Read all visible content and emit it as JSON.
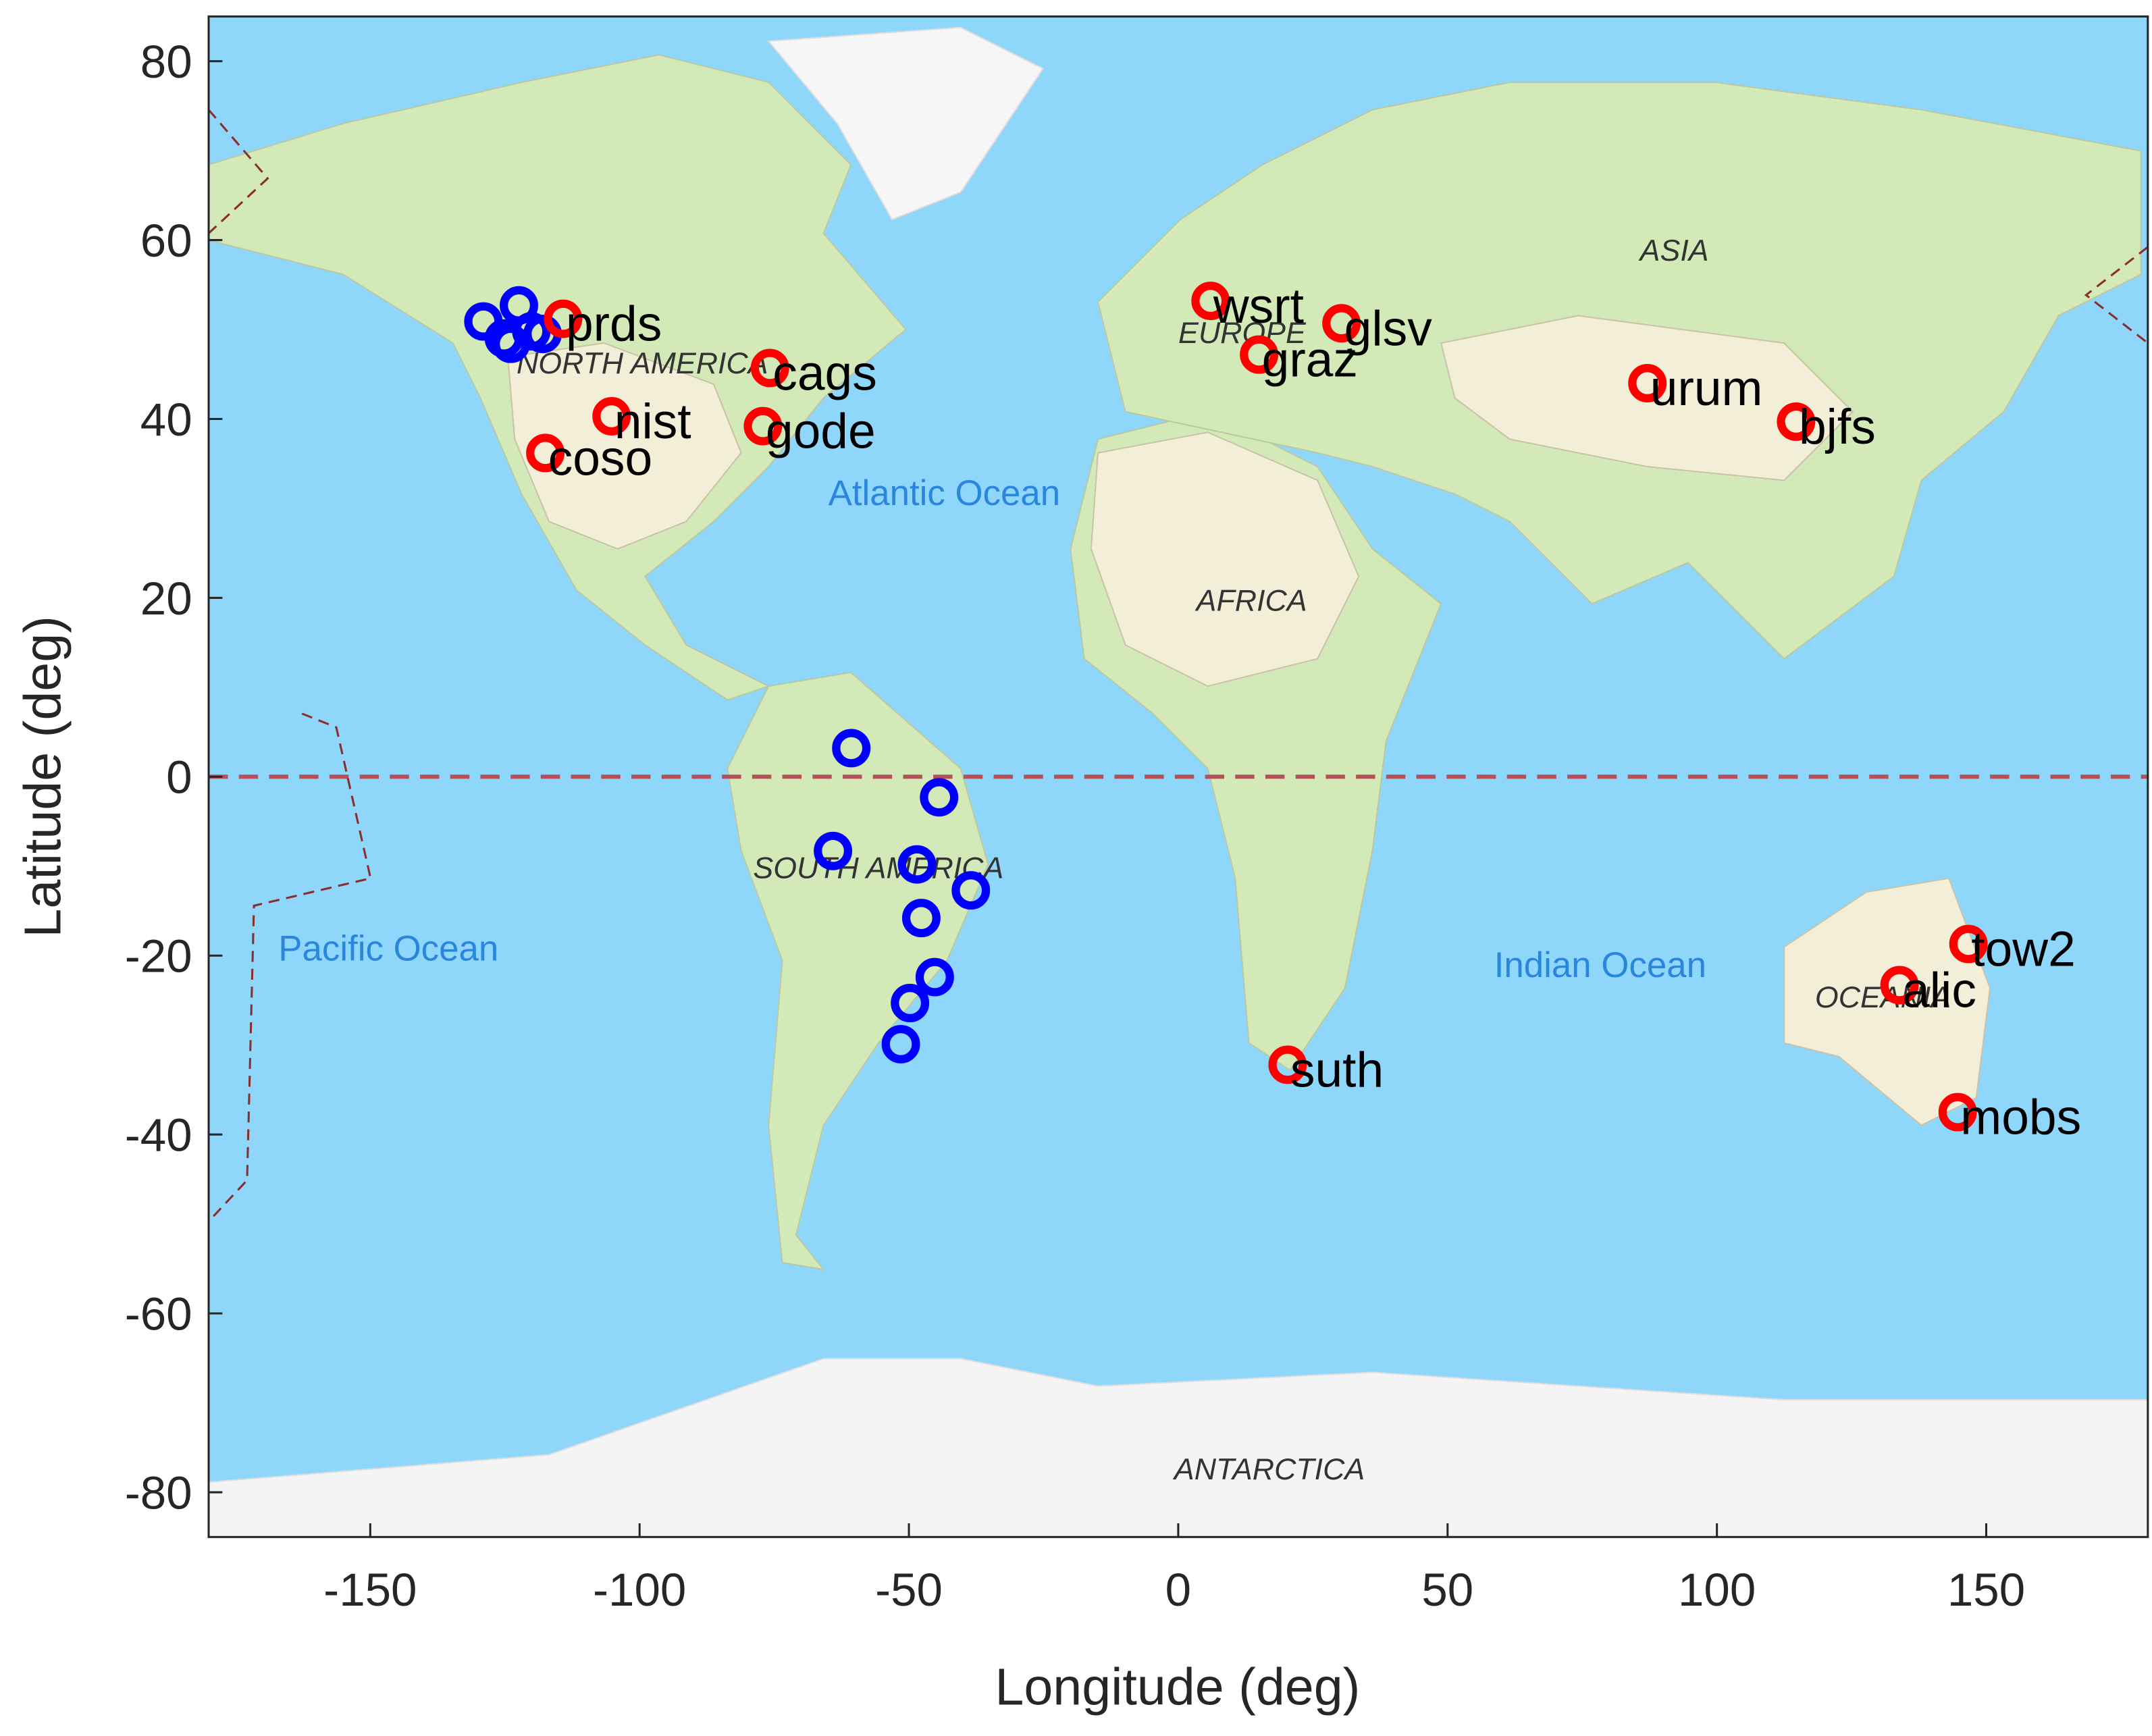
{
  "chart_data": {
    "type": "scatter",
    "xlabel": "Longitude (deg)",
    "ylabel": "Latitude (deg)",
    "xlim": [
      -180,
      180
    ],
    "ylim": [
      -85,
      85
    ],
    "xticks": [
      -150,
      -100,
      -50,
      0,
      50,
      100,
      150
    ],
    "yticks": [
      -80,
      -60,
      -40,
      -20,
      0,
      20,
      40,
      60,
      80
    ],
    "grid": false,
    "map_labels": [
      "NORTH AMERICA",
      "SOUTH AMERICA",
      "EUROPE",
      "ASIA",
      "AFRICA",
      "OCEANIA",
      "ANTARCTICA",
      "Atlantic Ocean",
      "Pacific Ocean",
      "Indian Ocean"
    ],
    "series": [
      {
        "color": "#ff0000",
        "labels": [
          "prds",
          "nist",
          "coso",
          "cags",
          "gode",
          "wsrt",
          "graz",
          "glsv",
          "urum",
          "bjfs",
          "suth",
          "alic",
          "tow2",
          "mobs"
        ],
        "x": [
          -114.2,
          -105.2,
          -117.5,
          -75.8,
          -77.1,
          6.0,
          15.0,
          30.3,
          87.1,
          114.7,
          20.3,
          133.9,
          146.7,
          144.7
        ],
        "y": [
          51.2,
          40.3,
          36.2,
          45.7,
          39.2,
          53.2,
          47.2,
          50.7,
          44.0,
          39.7,
          -32.2,
          -23.3,
          -18.7,
          -37.5
        ]
      },
      {
        "color": "#0000ff",
        "x": [
          -129.0,
          -122.4,
          -125.2,
          -120.1,
          -123.9,
          -118.0,
          -60.7,
          -44.4,
          -64.1,
          -48.5,
          -38.5,
          -47.7,
          -45.2,
          -49.8,
          -51.5
        ],
        "y": [
          50.9,
          52.7,
          49.0,
          49.8,
          48.4,
          49.5,
          3.2,
          -2.3,
          -8.3,
          -9.8,
          -12.7,
          -15.8,
          -22.4,
          -25.3,
          -29.9
        ]
      }
    ]
  }
}
